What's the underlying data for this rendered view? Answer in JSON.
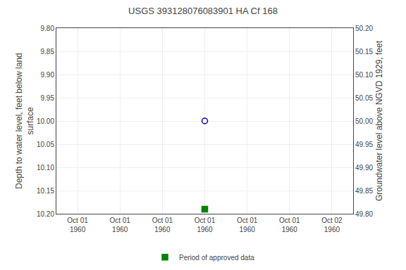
{
  "chart_data": {
    "type": "scatter",
    "title": "USGS 393128076083901 HA Cf 168",
    "y_label": "Depth to water level, feet below land\nsurface",
    "y2_label": "Groundwater level above NGVD 1929, feet",
    "categories": [
      "Oct 01\n1960",
      "Oct 01\n1960",
      "Oct 01\n1960",
      "Oct 01\n1960",
      "Oct 01\n1960",
      "Oct 01\n1960",
      "Oct 02\n1960"
    ],
    "series": [
      {
        "color": "#0000bb",
        "marker": "open_circle",
        "values": [
          null,
          null,
          null,
          10.0,
          null,
          null,
          null
        ]
      },
      {
        "name": "Period of approved data",
        "color": "#008000",
        "marker": "square",
        "values": [
          null,
          null,
          null,
          10.19,
          null,
          null,
          null
        ]
      }
    ],
    "ylim": [
      10.2,
      9.8
    ],
    "yticks": [
      {
        "value": 9.8,
        "label": "9.80"
      },
      {
        "value": 9.85,
        "label": "9.85"
      },
      {
        "value": 9.9,
        "label": "9.90"
      },
      {
        "value": 9.95,
        "label": "9.95"
      },
      {
        "value": 10.0,
        "label": "10.00"
      },
      {
        "value": 10.05,
        "label": "10.05"
      },
      {
        "value": 10.1,
        "label": "10.10"
      },
      {
        "value": 10.15,
        "label": "10.15"
      },
      {
        "value": 10.2,
        "label": "10.20"
      }
    ],
    "y2lim": [
      49.8,
      50.2
    ],
    "y2ticks": [
      {
        "value": 49.8,
        "label": "49.80"
      },
      {
        "value": 49.85,
        "label": "49.85"
      },
      {
        "value": 49.9,
        "label": "49.90"
      },
      {
        "value": 49.95,
        "label": "49.95"
      },
      {
        "value": 50.0,
        "label": "50.00"
      },
      {
        "value": 50.05,
        "label": "50.05"
      },
      {
        "value": 50.1,
        "label": "50.10"
      },
      {
        "value": 50.15,
        "label": "50.15"
      },
      {
        "value": 50.2,
        "label": "50.20"
      }
    ],
    "grid": true,
    "legend": "bottom"
  }
}
